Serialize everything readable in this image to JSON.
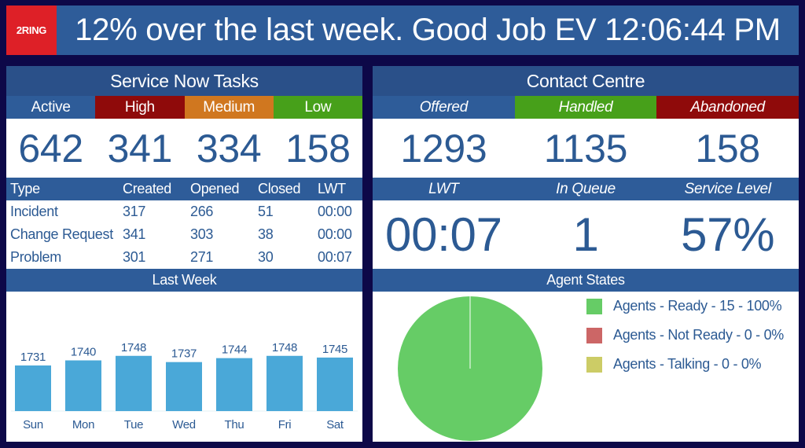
{
  "header": {
    "logo": "2RING",
    "banner": "12% over the last week. Good Job EV 12:06:44 PM"
  },
  "service_now": {
    "title": "Service Now Tasks",
    "priorities": [
      {
        "label": "Active",
        "value": "642",
        "color": "#2e5c99"
      },
      {
        "label": "High",
        "value": "341",
        "color": "#8f0a0a"
      },
      {
        "label": "Medium",
        "value": "334",
        "color": "#d0771f"
      },
      {
        "label": "Low",
        "value": "158",
        "color": "#47a01a"
      }
    ],
    "table": {
      "headers": [
        "Type",
        "Created",
        "Opened",
        "Closed",
        "LWT"
      ],
      "rows": [
        [
          "Incident",
          "317",
          "266",
          "51",
          "00:00"
        ],
        [
          "Change Request",
          "341",
          "303",
          "38",
          "00:00"
        ],
        [
          "Problem",
          "301",
          "271",
          "30",
          "00:07"
        ]
      ]
    }
  },
  "contact_centre": {
    "title": "Contact Centre",
    "row1": [
      {
        "label": "Offered",
        "value": "1293",
        "color": "#2e5c99"
      },
      {
        "label": "Handled",
        "value": "1135",
        "color": "#47a01a"
      },
      {
        "label": "Abandoned",
        "value": "158",
        "color": "#8f0a0a"
      }
    ],
    "row2": [
      {
        "label": "LWT",
        "value": "00:07"
      },
      {
        "label": "In Queue",
        "value": "1"
      },
      {
        "label": "Service Level",
        "value": "57%"
      }
    ]
  },
  "chart_data": [
    {
      "type": "bar",
      "title": "Last Week",
      "categories": [
        "Sun",
        "Mon",
        "Tue",
        "Wed",
        "Thu",
        "Fri",
        "Sat"
      ],
      "values": [
        1731,
        1740,
        1748,
        1737,
        1744,
        1748,
        1745
      ],
      "color": "#4aa8d8",
      "grid": false
    },
    {
      "type": "pie",
      "title": "Agent States",
      "legend": "right",
      "slices": [
        {
          "label": "Agents - Ready - 15 - 100%",
          "value": 15,
          "color": "#66cc66"
        },
        {
          "label": "Agents - Not Ready - 0 - 0%",
          "value": 0,
          "color": "#cc6666"
        },
        {
          "label": "Agents - Talking - 0 - 0%",
          "value": 0,
          "color": "#cccc66"
        }
      ]
    }
  ]
}
